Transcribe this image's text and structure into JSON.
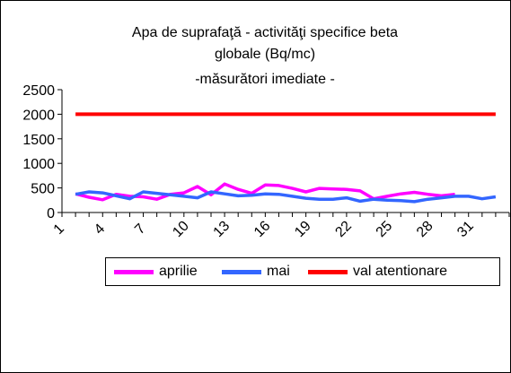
{
  "chart_data": {
    "type": "line",
    "title_lines": [
      "Apa de suprafaţă - activităţi specifice beta",
      "globale (Bq/mc)",
      "-măsurători imediate -"
    ],
    "xlabel": "",
    "ylabel": "",
    "x_ticks": [
      "1",
      "4",
      "7",
      "10",
      "13",
      "16",
      "19",
      "22",
      "25",
      "28",
      "31"
    ],
    "y_ticks": [
      "0",
      "500",
      "1000",
      "1500",
      "2000",
      "2500"
    ],
    "ylim": [
      0,
      2500
    ],
    "xlim": [
      1,
      34
    ],
    "grid": false,
    "legend_position": "bottom",
    "series": [
      {
        "name": "aprilie",
        "color": "#ff00ff",
        "x": [
          2,
          3,
          4,
          5,
          6,
          7,
          8,
          9,
          10,
          11,
          12,
          13,
          14,
          15,
          16,
          17,
          18,
          19,
          20,
          21,
          22,
          23,
          24,
          25,
          26,
          27,
          28,
          29,
          30
        ],
        "values": [
          380,
          310,
          260,
          370,
          330,
          320,
          270,
          370,
          400,
          530,
          360,
          580,
          470,
          390,
          560,
          550,
          490,
          420,
          490,
          480,
          470,
          440,
          280,
          330,
          380,
          410,
          370,
          340,
          370
        ]
      },
      {
        "name": "mai",
        "color": "#3366ff",
        "x": [
          2,
          3,
          4,
          5,
          6,
          7,
          8,
          9,
          10,
          11,
          12,
          13,
          14,
          15,
          16,
          17,
          18,
          19,
          20,
          21,
          22,
          23,
          24,
          25,
          26,
          27,
          28,
          29,
          30,
          31,
          32,
          33
        ],
        "values": [
          370,
          420,
          400,
          340,
          280,
          420,
          390,
          360,
          330,
          300,
          420,
          380,
          340,
          350,
          380,
          370,
          330,
          290,
          270,
          270,
          300,
          230,
          270,
          250,
          240,
          220,
          270,
          300,
          330,
          330,
          280,
          320
        ]
      },
      {
        "name": "val atentionare",
        "color": "#ff0000",
        "x": [
          2,
          33
        ],
        "values": [
          2000,
          2000
        ]
      }
    ]
  }
}
